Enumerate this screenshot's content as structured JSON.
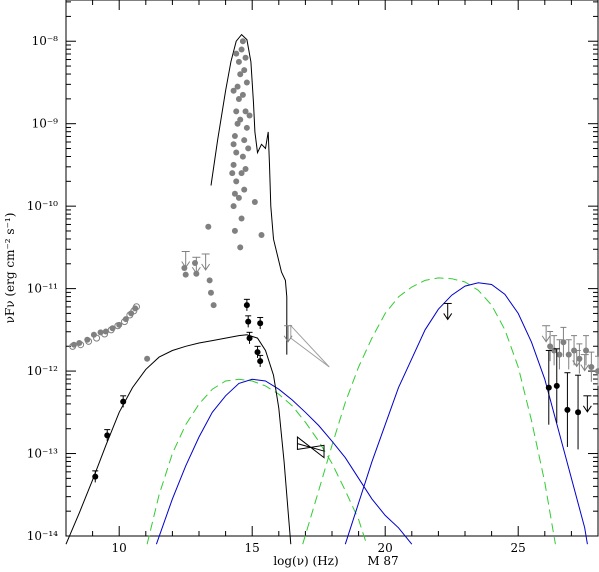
{
  "chart_data": {
    "type": "scatter",
    "title": "",
    "annotation": "M 87",
    "xlabel": "log(ν)  (Hz)",
    "ylabel": "νFν  (erg cm⁻² s⁻¹)",
    "xlim": [
      8,
      28
    ],
    "ylim_log10": [
      -14,
      -7.5
    ],
    "yscale": "log",
    "x_ticks": [
      {
        "value": 10,
        "label": "10"
      },
      {
        "value": 15,
        "label": "15"
      },
      {
        "value": 20,
        "label": "20"
      },
      {
        "value": 25,
        "label": "25"
      }
    ],
    "y_ticks": [
      {
        "value": -14,
        "label": "10⁻¹⁴"
      },
      {
        "value": -13,
        "label": "10⁻¹³"
      },
      {
        "value": -12,
        "label": "10⁻¹²"
      },
      {
        "value": -11,
        "label": "10⁻¹¹"
      },
      {
        "value": -10,
        "label": "10⁻¹⁰"
      },
      {
        "value": -9,
        "label": "10⁻⁹"
      },
      {
        "value": -8,
        "label": "10⁻⁸"
      }
    ],
    "colors": {
      "black": "#000000",
      "grey_points": "#808080",
      "grey_light": "#a0a0a0",
      "blue": "#0000cc",
      "green": "#33cc33"
    },
    "grey_open_points": [
      [
        8.25,
        -11.7
      ],
      [
        8.55,
        -11.68
      ],
      [
        8.85,
        -11.64
      ],
      [
        9.15,
        -11.6
      ],
      [
        9.45,
        -11.55
      ],
      [
        9.7,
        -11.5
      ],
      [
        9.95,
        -11.45
      ],
      [
        10.2,
        -11.4
      ],
      [
        10.4,
        -11.32
      ],
      [
        10.55,
        -11.27
      ],
      [
        10.65,
        -11.22
      ]
    ],
    "grey_filled_points": [
      [
        8.3,
        -11.68
      ],
      [
        8.5,
        -11.66
      ],
      [
        8.8,
        -11.62
      ],
      [
        9.05,
        -11.56
      ],
      [
        9.3,
        -11.53
      ],
      [
        9.5,
        -11.52
      ],
      [
        9.75,
        -11.48
      ],
      [
        10.0,
        -11.44
      ],
      [
        10.25,
        -11.37
      ],
      [
        10.45,
        -11.3
      ],
      [
        10.6,
        -11.24
      ],
      [
        11.05,
        -11.85
      ],
      [
        12.45,
        -10.75
      ],
      [
        12.5,
        -10.83
      ],
      [
        12.85,
        -10.69
      ],
      [
        12.9,
        -10.82
      ],
      [
        13.35,
        -10.25
      ],
      [
        13.4,
        -10.9
      ],
      [
        13.45,
        -11.05
      ],
      [
        13.55,
        -11.2
      ],
      [
        14.3,
        -10.0
      ],
      [
        14.35,
        -9.85
      ],
      [
        14.4,
        -9.7
      ],
      [
        14.3,
        -9.5
      ],
      [
        14.4,
        -9.35
      ],
      [
        14.35,
        -9.15
      ],
      [
        14.45,
        -9.0
      ],
      [
        14.4,
        -8.85
      ],
      [
        14.5,
        -8.7
      ],
      [
        14.45,
        -8.55
      ],
      [
        14.55,
        -8.4
      ],
      [
        14.5,
        -8.25
      ],
      [
        14.6,
        -8.1
      ],
      [
        14.65,
        -9.4
      ],
      [
        14.7,
        -9.2
      ],
      [
        14.55,
        -8.95
      ],
      [
        14.65,
        -8.65
      ],
      [
        14.75,
        -8.85
      ],
      [
        14.6,
        -9.6
      ],
      [
        14.7,
        -9.8
      ],
      [
        14.8,
        -9.05
      ],
      [
        14.75,
        -9.55
      ],
      [
        14.85,
        -9.3
      ],
      [
        14.9,
        -8.9
      ],
      [
        14.5,
        -9.9
      ],
      [
        14.3,
        -9.25
      ],
      [
        14.25,
        -9.6
      ],
      [
        14.35,
        -10.3
      ],
      [
        14.8,
        -8.5
      ],
      [
        14.7,
        -8.35
      ],
      [
        14.65,
        -8.0
      ],
      [
        14.75,
        -8.2
      ],
      [
        14.3,
        -8.6
      ],
      [
        14.4,
        -8.15
      ],
      [
        15.1,
        -9.95
      ],
      [
        15.35,
        -10.35
      ],
      [
        14.55,
        -10.5
      ],
      [
        14.6,
        -10.15
      ]
    ],
    "grey_upper_limits": [
      [
        12.5,
        -10.55
      ],
      [
        12.9,
        -10.62
      ],
      [
        13.25,
        -10.58
      ],
      [
        16.35,
        -11.45
      ],
      [
        26.05,
        -11.45
      ],
      [
        27.2,
        -11.75
      ],
      [
        27.5,
        -11.8
      ]
    ],
    "grey_right_points": [
      [
        26.2,
        -11.7
      ],
      [
        26.35,
        -11.75
      ],
      [
        26.55,
        -11.8
      ],
      [
        26.7,
        -11.65
      ],
      [
        26.9,
        -11.8
      ],
      [
        27.1,
        -11.75
      ],
      [
        27.3,
        -11.85
      ],
      [
        27.55,
        -11.75
      ],
      [
        27.75,
        -11.95
      ],
      [
        28.0,
        -12.0
      ]
    ],
    "black_points": [
      [
        9.1,
        -13.28
      ],
      [
        9.55,
        -12.78
      ],
      [
        10.15,
        -12.37
      ],
      [
        14.8,
        -11.2
      ],
      [
        14.85,
        -11.4
      ],
      [
        14.9,
        -11.6
      ],
      [
        15.2,
        -11.77
      ],
      [
        15.3,
        -11.88
      ],
      [
        15.3,
        -11.42
      ],
      [
        26.15,
        -12.2
      ],
      [
        26.45,
        -12.18
      ],
      [
        26.85,
        -12.47
      ],
      [
        27.25,
        -12.5
      ]
    ],
    "black_upper_limits": [
      [
        22.35,
        -11.18
      ],
      [
        27.6,
        -12.3
      ]
    ],
    "black_curve": [
      [
        8.0,
        -14.1
      ],
      [
        8.5,
        -13.72
      ],
      [
        9.0,
        -13.32
      ],
      [
        9.5,
        -12.9
      ],
      [
        10.0,
        -12.5
      ],
      [
        10.5,
        -12.2
      ],
      [
        11.0,
        -11.98
      ],
      [
        11.5,
        -11.83
      ],
      [
        12.0,
        -11.75
      ],
      [
        12.5,
        -11.7
      ],
      [
        13.0,
        -11.66
      ],
      [
        13.5,
        -11.63
      ],
      [
        14.0,
        -11.6
      ],
      [
        14.5,
        -11.57
      ],
      [
        14.8,
        -11.56
      ],
      [
        15.2,
        -11.6
      ],
      [
        15.5,
        -11.75
      ],
      [
        15.8,
        -12.05
      ],
      [
        16.0,
        -12.45
      ],
      [
        16.2,
        -13.1
      ],
      [
        16.35,
        -13.7
      ],
      [
        16.45,
        -14.1
      ]
    ],
    "black_thin_curve": [
      [
        13.45,
        -9.75
      ],
      [
        13.7,
        -9.2
      ],
      [
        14.0,
        -8.6
      ],
      [
        14.2,
        -8.25
      ],
      [
        14.4,
        -8.0
      ],
      [
        14.6,
        -7.92
      ],
      [
        14.8,
        -7.98
      ],
      [
        14.95,
        -8.25
      ],
      [
        15.05,
        -8.75
      ],
      [
        15.1,
        -9.1
      ],
      [
        15.2,
        -9.35
      ],
      [
        15.35,
        -9.25
      ],
      [
        15.5,
        -9.3
      ],
      [
        15.6,
        -9.1
      ],
      [
        15.65,
        -9.5
      ],
      [
        15.7,
        -10.0
      ],
      [
        15.8,
        -10.4
      ],
      [
        15.95,
        -10.6
      ],
      [
        16.1,
        -10.8
      ],
      [
        16.25,
        -10.9
      ],
      [
        16.3,
        -11.1
      ],
      [
        16.3,
        -11.8
      ]
    ],
    "blue_curves": [
      [
        [
          11.4,
          -14.1
        ],
        [
          12.0,
          -13.55
        ],
        [
          12.5,
          -13.15
        ],
        [
          13.0,
          -12.8
        ],
        [
          13.5,
          -12.5
        ],
        [
          14.0,
          -12.3
        ],
        [
          14.5,
          -12.15
        ],
        [
          15.0,
          -12.1
        ],
        [
          15.5,
          -12.12
        ],
        [
          16.0,
          -12.22
        ],
        [
          16.5,
          -12.35
        ],
        [
          17.0,
          -12.5
        ],
        [
          17.5,
          -12.66
        ],
        [
          18.0,
          -12.85
        ],
        [
          18.5,
          -13.05
        ],
        [
          19.0,
          -13.3
        ],
        [
          19.5,
          -13.55
        ],
        [
          20.0,
          -13.75
        ],
        [
          20.5,
          -13.9
        ],
        [
          21.0,
          -14.1
        ]
      ],
      [
        [
          18.5,
          -14.1
        ],
        [
          19.0,
          -13.6
        ],
        [
          19.5,
          -13.1
        ],
        [
          20.0,
          -12.65
        ],
        [
          20.5,
          -12.2
        ],
        [
          21.0,
          -11.85
        ],
        [
          21.5,
          -11.5
        ],
        [
          22.0,
          -11.25
        ],
        [
          22.5,
          -11.08
        ],
        [
          23.0,
          -10.97
        ],
        [
          23.5,
          -10.93
        ],
        [
          24.0,
          -10.95
        ],
        [
          24.5,
          -11.07
        ],
        [
          25.0,
          -11.3
        ],
        [
          25.5,
          -11.65
        ],
        [
          26.0,
          -12.1
        ],
        [
          26.5,
          -12.7
        ],
        [
          27.0,
          -13.3
        ],
        [
          27.5,
          -13.9
        ],
        [
          27.6,
          -14.1
        ]
      ]
    ],
    "green_dashed_curves": [
      [
        [
          11.05,
          -14.1
        ],
        [
          11.5,
          -13.5
        ],
        [
          12.0,
          -13.0
        ],
        [
          12.5,
          -12.65
        ],
        [
          13.0,
          -12.4
        ],
        [
          13.5,
          -12.22
        ],
        [
          14.0,
          -12.12
        ],
        [
          14.5,
          -12.1
        ],
        [
          15.0,
          -12.12
        ],
        [
          15.5,
          -12.18
        ],
        [
          16.0,
          -12.28
        ],
        [
          16.5,
          -12.42
        ],
        [
          17.0,
          -12.62
        ],
        [
          17.5,
          -12.85
        ],
        [
          18.0,
          -13.12
        ],
        [
          18.5,
          -13.45
        ],
        [
          19.0,
          -13.8
        ],
        [
          19.3,
          -14.1
        ]
      ],
      [
        [
          16.9,
          -14.1
        ],
        [
          17.5,
          -13.45
        ],
        [
          18.0,
          -12.9
        ],
        [
          18.5,
          -12.38
        ],
        [
          19.0,
          -11.95
        ],
        [
          19.5,
          -11.6
        ],
        [
          20.0,
          -11.3
        ],
        [
          20.5,
          -11.1
        ],
        [
          21.0,
          -10.98
        ],
        [
          21.5,
          -10.9
        ],
        [
          22.0,
          -10.87
        ],
        [
          22.5,
          -10.88
        ],
        [
          23.0,
          -10.92
        ],
        [
          23.5,
          -11.02
        ],
        [
          24.0,
          -11.2
        ],
        [
          24.5,
          -11.5
        ],
        [
          25.0,
          -11.95
        ],
        [
          25.5,
          -12.6
        ],
        [
          26.0,
          -13.35
        ],
        [
          26.4,
          -14.1
        ]
      ]
    ],
    "xray_bowtie": {
      "x": [
        16.7,
        17.7
      ],
      "y_top": [
        -12.8,
        -13.05
      ],
      "y_bottom": [
        -12.95,
        -12.9
      ],
      "y_center": [
        -12.88,
        -12.97
      ]
    },
    "grey_xray_wedge": [
      [
        16.45,
        -11.45
      ],
      [
        17.9,
        -11.95
      ],
      [
        16.45,
        -11.6
      ]
    ]
  }
}
